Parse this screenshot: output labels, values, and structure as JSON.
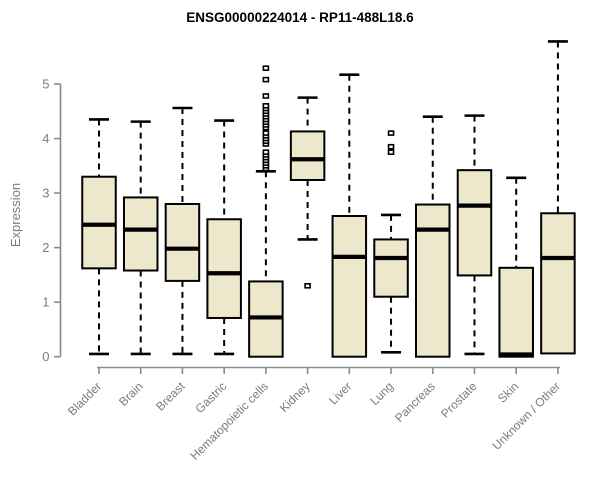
{
  "title": "ENSG00000224014 - RP11-488L18.6",
  "colors": {
    "box_fill": "#EDE7CB",
    "box_border": "#000000",
    "median": "#000000",
    "whisker": "#000000",
    "axis": "#8a8a8a",
    "axis_text": "#7c7c7c",
    "title_text": "#000000",
    "background": "#ffffff"
  },
  "chart_data": {
    "type": "box",
    "title": "ENSG00000224014 - RP11-488L18.6",
    "xlabel": "",
    "ylabel": "Expression",
    "yticks": [
      0,
      1,
      2,
      3,
      4,
      5
    ],
    "ylim": [
      -0.2,
      5.9
    ],
    "grid": "off",
    "legend": "none",
    "categories": [
      "Bladder",
      "Brain",
      "Breast",
      "Gastric",
      "Hematopoietic cells",
      "Kidney",
      "Liver",
      "Lung",
      "Pancreas",
      "Prostate",
      "Skin",
      "Unknown / Other"
    ],
    "series": [
      {
        "category": "Bladder",
        "low": 0.05,
        "q1": 1.62,
        "median": 2.42,
        "q3": 3.3,
        "high": 4.35,
        "outliers": []
      },
      {
        "category": "Brain",
        "low": 0.05,
        "q1": 1.58,
        "median": 2.33,
        "q3": 2.92,
        "high": 4.31,
        "outliers": []
      },
      {
        "category": "Breast",
        "low": 0.05,
        "q1": 1.39,
        "median": 1.98,
        "q3": 2.8,
        "high": 4.56,
        "outliers": []
      },
      {
        "category": "Gastric",
        "low": 0.05,
        "q1": 0.71,
        "median": 1.53,
        "q3": 2.52,
        "high": 4.33,
        "outliers": []
      },
      {
        "category": "Hematopoietic cells",
        "low": 0.0,
        "q1": 0.0,
        "median": 0.72,
        "q3": 1.38,
        "high": 3.4,
        "outliers": [
          3.45,
          3.5,
          3.55,
          3.6,
          3.65,
          3.7,
          3.75,
          3.9,
          3.95,
          4.0,
          4.05,
          4.1,
          4.2,
          4.25,
          4.3,
          4.35,
          4.4,
          4.45,
          4.5,
          4.55,
          4.6,
          4.78,
          5.08,
          5.29
        ]
      },
      {
        "category": "Kidney",
        "low": 2.15,
        "q1": 3.24,
        "median": 3.62,
        "q3": 4.13,
        "high": 4.75,
        "outliers": [
          1.3
        ]
      },
      {
        "category": "Liver",
        "low": 0.0,
        "q1": 0.0,
        "median": 1.83,
        "q3": 2.58,
        "high": 5.17,
        "outliers": []
      },
      {
        "category": "Lung",
        "low": 0.08,
        "q1": 1.1,
        "median": 1.81,
        "q3": 2.15,
        "high": 2.6,
        "outliers": [
          3.75,
          3.85,
          4.1
        ]
      },
      {
        "category": "Pancreas",
        "low": 0.0,
        "q1": 0.0,
        "median": 2.33,
        "q3": 2.79,
        "high": 4.4,
        "outliers": []
      },
      {
        "category": "Prostate",
        "low": 0.05,
        "q1": 1.49,
        "median": 2.77,
        "q3": 3.42,
        "high": 4.42,
        "outliers": []
      },
      {
        "category": "Skin",
        "low": 0.0,
        "q1": 0.0,
        "median": 0.04,
        "q3": 1.63,
        "high": 3.28,
        "outliers": []
      },
      {
        "category": "Unknown / Other",
        "low": 0.06,
        "q1": 0.06,
        "median": 1.81,
        "q3": 2.63,
        "high": 5.78,
        "outliers": []
      }
    ]
  }
}
